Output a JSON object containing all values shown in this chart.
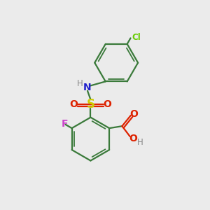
{
  "bg_color": "#ebebeb",
  "bond_color": "#3a7a3a",
  "N_color": "#2020cc",
  "S_color": "#cccc00",
  "O_color": "#dd2200",
  "F_color": "#cc44cc",
  "Cl_color": "#66cc00",
  "H_color": "#888888",
  "lw": 1.6,
  "lw_inner": 1.3,
  "figsize": [
    3.0,
    3.0
  ],
  "dpi": 100,
  "xlim": [
    0,
    10
  ],
  "ylim": [
    0,
    10
  ]
}
